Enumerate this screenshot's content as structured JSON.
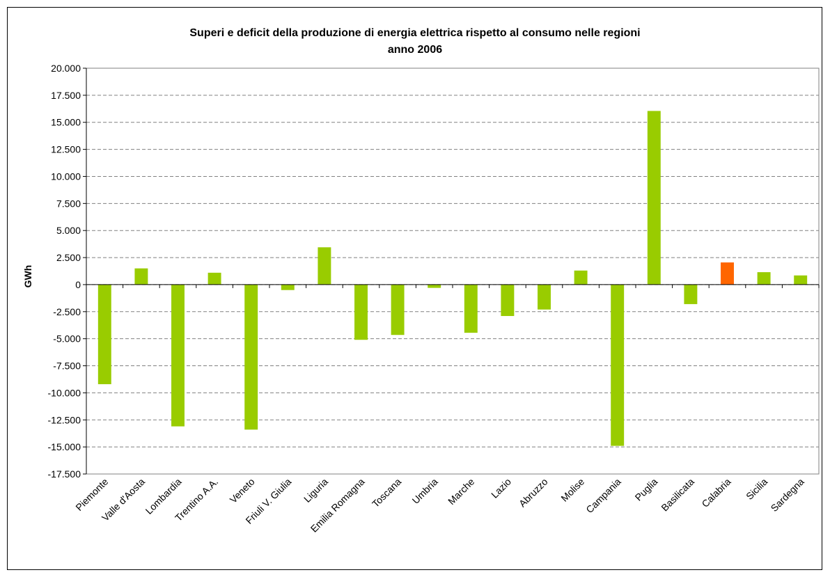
{
  "chart_data": {
    "type": "bar",
    "title": "Superi e deficit della produzione di energia elettrica rispetto al consumo nelle regioni",
    "subtitle": "anno 2006",
    "xlabel": "",
    "ylabel": "GWh",
    "ylim": [
      -17500,
      20000
    ],
    "ytick_step": 2500,
    "ytick_labels": [
      "20.000",
      "17.500",
      "15.000",
      "12.500",
      "10.000",
      "7.500",
      "5.000",
      "2.500",
      "0",
      "-2.500",
      "-5.000",
      "-7.500",
      "-10.000",
      "-12.500",
      "-15.000",
      "-17.500"
    ],
    "grid": true,
    "categories": [
      "Piemonte",
      "Valle d'Aosta",
      "Lombardia",
      "Trentino A.A.",
      "Veneto",
      "Friuli V. Giulia",
      "Liguria",
      "Emilia Romagna",
      "Toscana",
      "Umbria",
      "Marche",
      "Lazio",
      "Abruzzo",
      "Molise",
      "Campania",
      "Puglia",
      "Basilicata",
      "Calabria",
      "Sicilia",
      "Sardegna"
    ],
    "values": [
      -9200,
      1500,
      -13100,
      1100,
      -13400,
      -500,
      3450,
      -5100,
      -4650,
      -300,
      -4450,
      -2900,
      -2300,
      1300,
      -14900,
      16050,
      -1800,
      2050,
      1150,
      850
    ],
    "colors": {
      "default": "#99CC00",
      "highlight": "#FF6600",
      "highlight_category": "Calabria",
      "grid": "#808080",
      "plot_border": "#808080"
    }
  }
}
